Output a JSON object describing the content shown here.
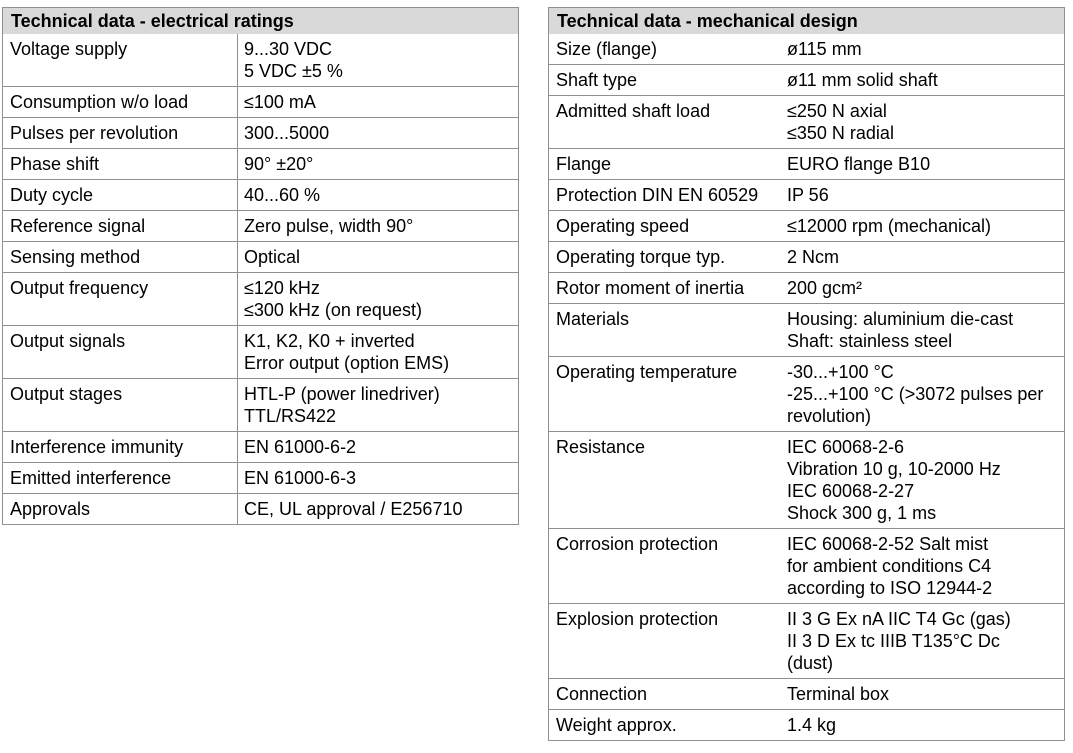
{
  "theme": {
    "page_bg": "#ffffff",
    "header_bg": "#d9d9d9",
    "border_color": "#8f8f8f",
    "text_color": "#000000"
  },
  "tables": [
    {
      "title": "Technical data - electrical ratings",
      "has_column_divider": true,
      "rows": [
        {
          "label": "Voltage supply",
          "value_lines": [
            "9...30 VDC",
            "5 VDC ±5 %"
          ]
        },
        {
          "label": "Consumption w/o load",
          "value_lines": [
            "≤100 mA"
          ]
        },
        {
          "label": "Pulses per revolution",
          "value_lines": [
            "300...5000"
          ]
        },
        {
          "label": "Phase shift",
          "value_lines": [
            "90° ±20°"
          ]
        },
        {
          "label": "Duty cycle",
          "value_lines": [
            "40...60 %"
          ]
        },
        {
          "label": "Reference signal",
          "value_lines": [
            "Zero pulse, width 90°"
          ]
        },
        {
          "label": "Sensing method",
          "value_lines": [
            "Optical"
          ]
        },
        {
          "label": "Output frequency",
          "value_lines": [
            "≤120 kHz",
            "≤300 kHz (on request)"
          ]
        },
        {
          "label": "Output signals",
          "value_lines": [
            "K1, K2, K0 + inverted",
            "Error output (option EMS)"
          ]
        },
        {
          "label": "Output stages",
          "value_lines": [
            "HTL-P (power linedriver)",
            "TTL/RS422"
          ]
        },
        {
          "label": "Interference immunity",
          "value_lines": [
            "EN 61000-6-2"
          ]
        },
        {
          "label": "Emitted interference",
          "value_lines": [
            "EN 61000-6-3"
          ]
        },
        {
          "label": "Approvals",
          "value_lines": [
            "CE, UL approval / E256710"
          ]
        }
      ]
    },
    {
      "title": "Technical data - mechanical design",
      "has_column_divider": false,
      "rows": [
        {
          "label": "Size (flange)",
          "value_lines": [
            "ø115 mm"
          ]
        },
        {
          "label": "Shaft type",
          "value_lines": [
            "ø11 mm solid shaft"
          ]
        },
        {
          "label": "Admitted shaft load",
          "value_lines": [
            "≤250 N axial",
            "≤350 N radial"
          ]
        },
        {
          "label": "Flange",
          "value_lines": [
            "EURO flange B10"
          ]
        },
        {
          "label": "Protection DIN EN 60529",
          "value_lines": [
            "IP 56"
          ]
        },
        {
          "label": "Operating speed",
          "value_lines": [
            "≤12000 rpm (mechanical)"
          ]
        },
        {
          "label": "Operating torque typ.",
          "value_lines": [
            "2 Ncm"
          ]
        },
        {
          "label": "Rotor moment of inertia",
          "value_lines": [
            "200 gcm²"
          ]
        },
        {
          "label": "Materials",
          "value_lines": [
            "Housing: aluminium die-cast",
            "Shaft: stainless steel"
          ]
        },
        {
          "label": "Operating temperature",
          "value_lines": [
            "-30...+100 °C",
            "-25...+100 °C (>3072 pulses per revolution)"
          ]
        },
        {
          "label": "Resistance",
          "value_lines": [
            "IEC 60068-2-6",
            "Vibration 10 g, 10-2000 Hz",
            "IEC 60068-2-27",
            "Shock 300 g, 1 ms"
          ]
        },
        {
          "label": "Corrosion protection",
          "value_lines": [
            "IEC 60068-2-52 Salt mist",
            "for ambient conditions C4",
            "according to ISO 12944-2"
          ]
        },
        {
          "label": "Explosion protection",
          "value_lines": [
            "II 3 G Ex nA IIC T4 Gc (gas)",
            "II 3 D Ex tc IIIB T135°C Dc",
            "(dust)"
          ]
        },
        {
          "label": "Connection",
          "value_lines": [
            "Terminal box"
          ]
        },
        {
          "label": "Weight approx.",
          "value_lines": [
            "1.4 kg"
          ]
        }
      ]
    }
  ]
}
